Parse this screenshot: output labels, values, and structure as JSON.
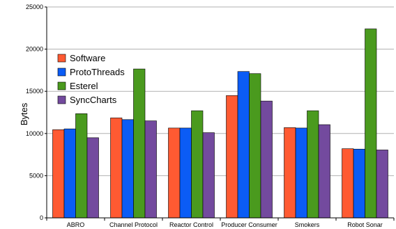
{
  "chart_data": {
    "type": "bar",
    "title": "",
    "xlabel": "",
    "ylabel": "Bytes",
    "ylim": [
      0,
      25000
    ],
    "yticks": [
      0,
      5000,
      10000,
      15000,
      20000,
      25000
    ],
    "grid": "horizontal",
    "legend_position": "upper-left",
    "categories": [
      "ABRO",
      "Channel Protocol",
      "Reactor Control",
      "Producer Consumer",
      "Smokers",
      "Robot Sonar"
    ],
    "series": [
      {
        "name": "Software",
        "color": "#ff5a32",
        "values": [
          10450,
          11850,
          10650,
          14500,
          10700,
          8200
        ]
      },
      {
        "name": "ProtoThreads",
        "color": "#0b5cf5",
        "values": [
          10550,
          11650,
          10650,
          17350,
          10650,
          8150
        ]
      },
      {
        "name": "Esterel",
        "color": "#4a9a1e",
        "values": [
          12350,
          17650,
          12700,
          17100,
          12700,
          22400
        ]
      },
      {
        "name": "SyncCharts",
        "color": "#734a9e",
        "values": [
          9500,
          11500,
          10100,
          13850,
          11050,
          8050
        ]
      }
    ]
  }
}
